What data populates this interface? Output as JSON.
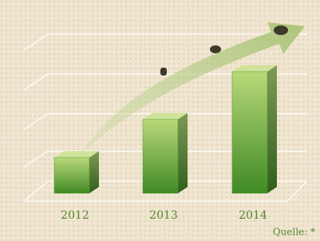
{
  "chart_data": {
    "type": "bar",
    "categories": [
      "2012",
      "2013",
      "2014"
    ],
    "values": [
      45,
      93,
      153
    ],
    "color": "#4f9a2e",
    "ylim": [
      0,
      200
    ],
    "source": "Quelle: *"
  }
}
